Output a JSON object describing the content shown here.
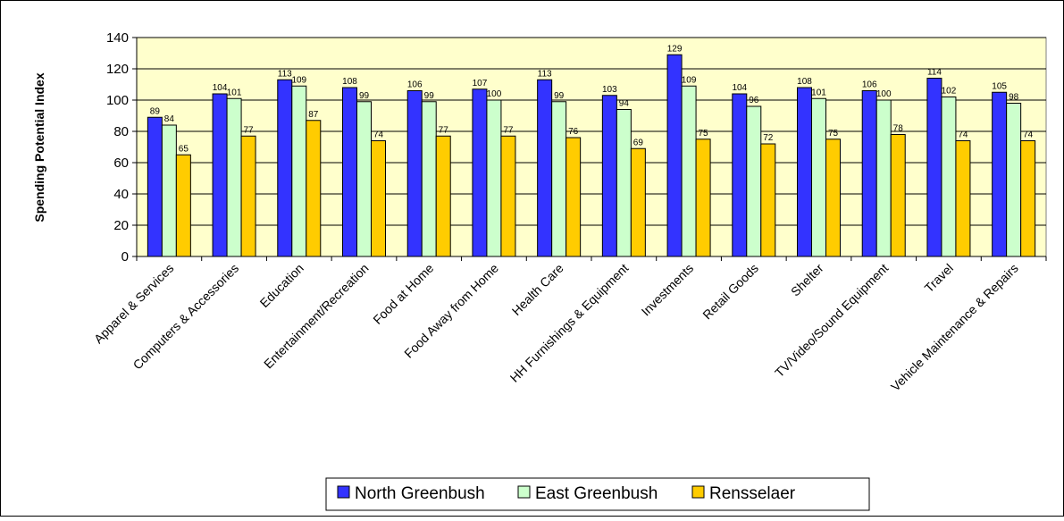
{
  "chart_data": {
    "type": "bar",
    "title": "",
    "xlabel": "",
    "ylabel": "Spending Potential Index",
    "ylim": [
      0,
      140
    ],
    "yticks": [
      0,
      20,
      40,
      60,
      80,
      100,
      120,
      140
    ],
    "grid": true,
    "legend_position": "bottom",
    "plot_background": "#ffffcc",
    "categories": [
      "Apparel & Services",
      "Computers & Accessories",
      "Education",
      "Entertainment/Recreation",
      "Food at Home",
      "Food Away from Home",
      "Health Care",
      "HH Furnishings & Equipment",
      "Investments",
      "Retail Goods",
      "Shelter",
      "TV/Video/Sound Equipment",
      "Travel",
      "Vehicle Maintenance & Repairs"
    ],
    "series": [
      {
        "name": "North Greenbush",
        "color": "#3333ff",
        "values": [
          89,
          104,
          113,
          108,
          106,
          107,
          113,
          103,
          129,
          104,
          108,
          106,
          114,
          105
        ]
      },
      {
        "name": "East Greenbush",
        "color": "#ccffcc",
        "values": [
          84,
          101,
          109,
          99,
          99,
          100,
          99,
          94,
          109,
          96,
          101,
          100,
          102,
          98
        ]
      },
      {
        "name": "Rensselaer",
        "color": "#ffcc00",
        "values": [
          65,
          77,
          87,
          74,
          77,
          77,
          76,
          69,
          75,
          72,
          75,
          78,
          74,
          74
        ]
      }
    ]
  }
}
